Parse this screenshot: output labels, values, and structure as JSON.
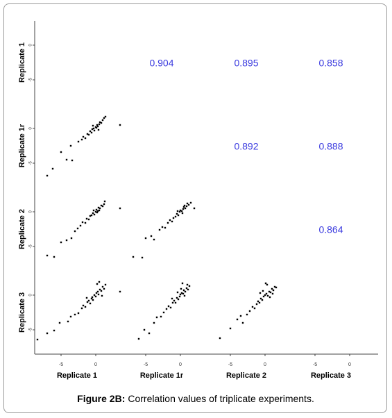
{
  "chart_data": {
    "type": "scatter-matrix",
    "variables": [
      "Replicate 1",
      "Replicate 1r",
      "Replicate 2",
      "Replicate 3"
    ],
    "xlim": [
      -8.8,
      3.4
    ],
    "ylim": [
      -8.5,
      3.5
    ],
    "xticks": [
      -5,
      0
    ],
    "yticks": [
      -5,
      0
    ],
    "point_color": "#000000",
    "correlation_color": "#3a3adf",
    "correlations": [
      [
        0.904,
        0.895,
        0.858
      ],
      [
        0.892,
        0.888
      ],
      [
        0.864
      ]
    ],
    "scatter": [
      [
        {
          "x": [
            -7,
            -6.2,
            -5,
            -4.2,
            -3.4,
            -3.6,
            -2.5,
            -2,
            -1.8,
            -1.5,
            -1.2,
            -1,
            -0.8,
            -0.6,
            -0.5,
            -0.3,
            -0.2,
            0,
            0.1,
            0.2,
            0.3,
            0.5,
            0.6,
            0.8,
            1,
            1.2,
            1.4,
            0.4,
            -0.4,
            3.5
          ],
          "y": [
            -6.8,
            -5.8,
            -3.4,
            -4.5,
            -4.6,
            -2.5,
            -1.9,
            -1.6,
            -1.2,
            -1.4,
            -0.8,
            -0.9,
            -0.4,
            -0.6,
            -0.1,
            0,
            -0.3,
            0.2,
            0.1,
            0.5,
            0.3,
            0.6,
            0.9,
            0.8,
            1.2,
            1.5,
            1.7,
            -0.2,
            0.4,
            0.5
          ]
        }
      ],
      [
        {
          "x": [
            -7,
            -6,
            -5,
            -3.5,
            -4.2,
            -3,
            -2.6,
            -2.2,
            -1.9,
            -1.5,
            -1.3,
            -1,
            -0.8,
            -0.6,
            -0.4,
            -0.2,
            0,
            0.1,
            0.3,
            0.4,
            0.6,
            0.8,
            1,
            1.2,
            1.3,
            0.2,
            -0.3,
            0.5,
            3.5
          ],
          "y": [
            -6.3,
            -6.5,
            -4.4,
            -3.8,
            -4.1,
            -2.8,
            -2.4,
            -2,
            -1.5,
            -1.6,
            -1,
            -1.1,
            -0.6,
            -0.5,
            -0.2,
            -0.4,
            0,
            0.3,
            0.1,
            0.6,
            0.5,
            0.9,
            0.8,
            1.1,
            1.5,
            -0.1,
            0.2,
            0.2,
            0.5
          ],
          "label": null
        },
        {
          "x": [
            -6.8,
            -5.5,
            -5,
            -4.2,
            -3.8,
            -3,
            -2.6,
            -2.2,
            -1.8,
            -1.5,
            -1.2,
            -1,
            -0.7,
            -0.5,
            -0.3,
            -0.1,
            0,
            0.2,
            0.4,
            0.5,
            0.7,
            0.9,
            1,
            1.2,
            1.5,
            0.3,
            -0.4,
            0.6,
            2
          ],
          "y": [
            -6.5,
            -6.6,
            -3.8,
            -3.5,
            -4,
            -2.6,
            -2.2,
            -2.3,
            -1.6,
            -1.2,
            -1.4,
            -0.9,
            -0.7,
            -0.3,
            -0.5,
            0,
            0.2,
            0.1,
            0.4,
            0.7,
            0.5,
            0.8,
            1.2,
            1,
            1.3,
            -0.2,
            0.1,
            0.9,
            0.5
          ]
        }
      ],
      [
        {
          "x": [
            -8.4,
            -7,
            -6,
            -5.2,
            -4,
            -3.6,
            -3,
            -2.5,
            -2,
            -1.8,
            -1.5,
            -1.2,
            -1,
            -0.8,
            -0.6,
            -0.4,
            -0.2,
            0,
            0.1,
            0.3,
            0.4,
            0.6,
            0.8,
            1,
            1.2,
            1.4,
            0.2,
            -0.5,
            0.5,
            -1.3,
            0.9,
            3.5
          ],
          "y": [
            -6.4,
            -5.5,
            -5.1,
            -4,
            -3.8,
            -3.1,
            -2.8,
            -2.6,
            -1.9,
            -1.5,
            -1.7,
            -1,
            -0.8,
            -1.2,
            -0.5,
            -0.7,
            0,
            -0.2,
            0.3,
            0.5,
            0.1,
            0.8,
            0.6,
            1.2,
            0.9,
            1.5,
            1.6,
            -0.3,
            1.9,
            -0.4,
            -0.1,
            0.5
          ]
        },
        {
          "x": [
            -6,
            -5.2,
            -4.5,
            -3.8,
            -3.4,
            -2.8,
            -2.4,
            -2,
            -1.7,
            -1.4,
            -1.1,
            -0.9,
            -0.7,
            -0.5,
            -0.3,
            -0.1,
            0,
            0.2,
            0.4,
            0.5,
            0.7,
            0.9,
            1.1,
            1.3,
            0.3,
            -0.4,
            0.6,
            -1.2,
            1,
            0.1
          ],
          "y": [
            -6.3,
            -5,
            -5.5,
            -4,
            -3.2,
            -3.1,
            -2.5,
            -2,
            -1.6,
            -1.8,
            -1.1,
            -0.8,
            -1.1,
            -0.4,
            -0.6,
            -0.2,
            0.1,
            0.3,
            0.2,
            0.7,
            0.5,
            1,
            0.8,
            1.3,
            1.7,
            0.4,
            -0.1,
            -0.5,
            1.5,
            0.9
          ]
        },
        {
          "x": [
            -6.5,
            -5,
            -4,
            -3.5,
            -3.2,
            -2.6,
            -2.2,
            -1.8,
            -1.5,
            -1.2,
            -1,
            -0.8,
            -0.6,
            -0.4,
            -0.2,
            0,
            0.2,
            0.4,
            0.6,
            0.8,
            1,
            1.2,
            1.4,
            1.6,
            -0.3,
            0.3,
            0.7,
            -0.7,
            0.1,
            1.1
          ],
          "y": [
            -6.2,
            -4.8,
            -3.5,
            -3,
            -4,
            -2.8,
            -2.3,
            -1.7,
            -1.9,
            -1.3,
            -0.9,
            -1.1,
            -0.5,
            -0.7,
            -0.2,
            0,
            0.2,
            -0.1,
            0.5,
            0.4,
            0.9,
            0.7,
            1.2,
            1.1,
            0.6,
            1.5,
            -0.3,
            0.3,
            1.7,
            0.2
          ]
        }
      ]
    ]
  },
  "figure": {
    "caption_label": "Figure 2B:",
    "caption_text": "Correlation values of triplicate experiments."
  }
}
